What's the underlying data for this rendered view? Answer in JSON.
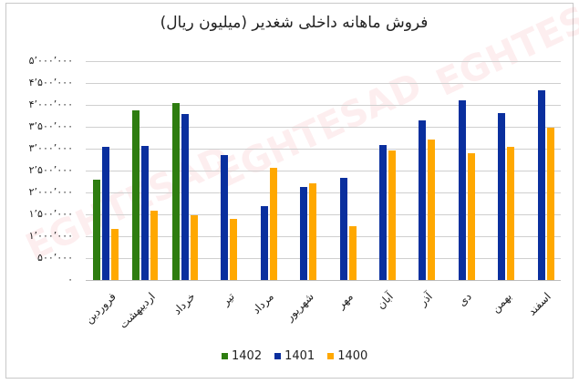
{
  "chart_data": {
    "type": "bar",
    "title": "فروش ماهانه داخلی شغدیر (میلیون ریال)",
    "xlabel": "",
    "ylabel": "",
    "ylim": [
      0,
      5000000
    ],
    "grid": true,
    "legend_position": "bottom",
    "y_ticks": [
      "۵٬۰۰۰٬۰۰۰",
      "۴٬۵۰۰٬۰۰۰",
      "۴٬۰۰۰٬۰۰۰",
      "۳٬۵۰۰٬۰۰۰",
      "۳٬۰۰۰٬۰۰۰",
      "۲٬۵۰۰٬۰۰۰",
      "۲٬۰۰۰٬۰۰۰",
      "۱٬۵۰۰٬۰۰۰",
      "۱٬۰۰۰٬۰۰۰",
      "۵۰۰٬۰۰۰",
      "۰"
    ],
    "categories": [
      "فروردین",
      "اردیبهشت",
      "خرداد",
      "تیر",
      "مرداد",
      "شهریور",
      "مهر",
      "آبان",
      "آذر",
      "دی",
      "بهمن",
      "اسفند"
    ],
    "series": [
      {
        "name": "1402",
        "color": "#2e7d10",
        "values": [
          2300000,
          3880000,
          4050000,
          null,
          null,
          null,
          null,
          null,
          null,
          null,
          null,
          null
        ]
      },
      {
        "name": "1401",
        "color": "#0a2f9e",
        "values": [
          3050000,
          3070000,
          3800000,
          2860000,
          1690000,
          2130000,
          2340000,
          3090000,
          3650000,
          4110000,
          3820000,
          4340000
        ]
      },
      {
        "name": "1400",
        "color": "#ffa800",
        "values": [
          1170000,
          1590000,
          1470000,
          1400000,
          2570000,
          2210000,
          1230000,
          2960000,
          3210000,
          2900000,
          3050000,
          3470000
        ]
      }
    ]
  },
  "legend": {
    "items": [
      {
        "label": "1402",
        "color": "#2e7d10"
      },
      {
        "label": "1401",
        "color": "#0a2f9e"
      },
      {
        "label": "1400",
        "color": "#ffa800"
      }
    ]
  }
}
